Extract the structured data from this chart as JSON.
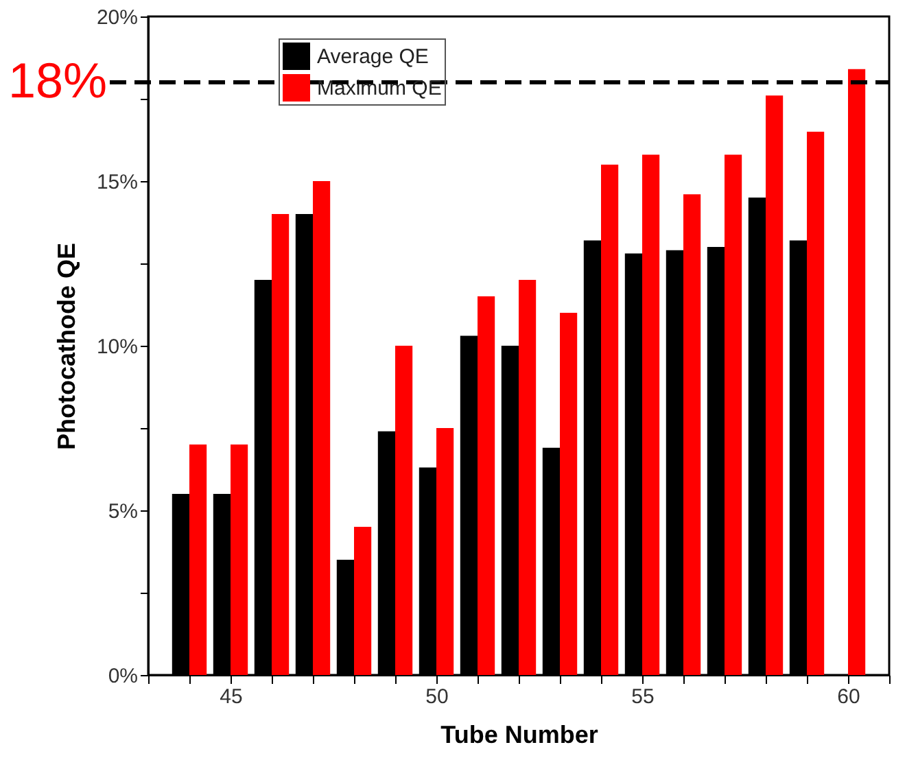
{
  "chart_data": {
    "type": "bar",
    "xlabel": "Tube Number",
    "ylabel": "Photocathode QE",
    "x": [
      44,
      45,
      46,
      47,
      48,
      49,
      50,
      51,
      52,
      53,
      54,
      55,
      56,
      57,
      58,
      59,
      60
    ],
    "series": [
      {
        "name": "Average QE",
        "color": "#000000",
        "values": [
          5.5,
          5.5,
          12.0,
          14.0,
          3.5,
          7.4,
          6.3,
          10.3,
          10.0,
          6.9,
          13.2,
          12.8,
          12.9,
          13.0,
          14.5,
          13.2,
          null
        ]
      },
      {
        "name": "Maximum QE",
        "color": "#ff0000",
        "values": [
          7.0,
          7.0,
          14.0,
          15.0,
          4.5,
          10.0,
          7.5,
          11.5,
          12.0,
          11.0,
          15.5,
          15.8,
          14.6,
          15.8,
          17.6,
          16.5,
          18.4
        ]
      }
    ],
    "xlim": [
      43,
      61
    ],
    "xticks": [
      {
        "value": 43,
        "label": null
      },
      {
        "value": 44,
        "label": null
      },
      45,
      {
        "value": 46,
        "label": null
      },
      {
        "value": 47,
        "label": null
      },
      {
        "value": 48,
        "label": null
      },
      {
        "value": 49,
        "label": null
      },
      50,
      {
        "value": 51,
        "label": null
      },
      {
        "value": 52,
        "label": null
      },
      {
        "value": 53,
        "label": null
      },
      {
        "value": 54,
        "label": null
      },
      55,
      {
        "value": 56,
        "label": null
      },
      {
        "value": 57,
        "label": null
      },
      {
        "value": 58,
        "label": null
      },
      {
        "value": 59,
        "label": null
      },
      60,
      {
        "value": 61,
        "label": null
      }
    ],
    "ylim": [
      0,
      20
    ],
    "yticks": [
      {
        "value": 0,
        "label": "0%"
      },
      {
        "value": 2.5,
        "label": null
      },
      {
        "value": 5,
        "label": "5%"
      },
      {
        "value": 7.5,
        "label": null
      },
      {
        "value": 10,
        "label": "10%"
      },
      {
        "value": 12.5,
        "label": null
      },
      {
        "value": 15,
        "label": "15%"
      },
      {
        "value": 17.5,
        "label": null
      },
      {
        "value": 20,
        "label": "20%"
      }
    ],
    "ref_lines": [
      {
        "axis": "y",
        "value": 18,
        "label": "18%",
        "color": "#000000",
        "line_style": "dashed"
      }
    ],
    "legend": "top left",
    "grid": false
  }
}
